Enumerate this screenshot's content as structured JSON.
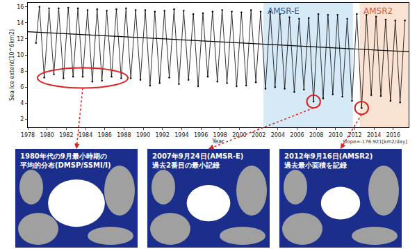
{
  "chart_data": {
    "type": "line",
    "xlabel": "Year",
    "ylabel": "Sea Ice extent(10^6km2)",
    "x": [
      1978.85,
      1979.21,
      1979.71,
      1980.21,
      1980.71,
      1981.21,
      1981.71,
      1982.21,
      1982.71,
      1983.21,
      1983.71,
      1984.21,
      1984.71,
      1985.21,
      1985.71,
      1986.21,
      1986.71,
      1987.21,
      1987.71,
      1988.21,
      1988.71,
      1989.21,
      1989.71,
      1990.21,
      1990.71,
      1991.21,
      1991.71,
      1992.21,
      1992.71,
      1993.21,
      1993.71,
      1994.21,
      1994.71,
      1995.21,
      1995.71,
      1996.21,
      1996.71,
      1997.21,
      1997.71,
      1998.21,
      1998.71,
      1999.21,
      1999.71,
      2000.21,
      2000.71,
      2001.21,
      2001.71,
      2002.21,
      2002.71,
      2003.21,
      2003.71,
      2004.21,
      2004.71,
      2005.21,
      2005.71,
      2006.21,
      2006.71,
      2007.21,
      2007.71,
      2008.21,
      2008.71,
      2009.21,
      2009.71,
      2010.21,
      2010.71,
      2011.21,
      2011.71,
      2012.21,
      2012.71,
      2013.21,
      2013.71,
      2014.21,
      2014.71,
      2015.21,
      2015.71,
      2016.21,
      2016.71,
      2017.21
    ],
    "series": [
      {
        "color": "#000000",
        "marker": "dot",
        "values": [
          11.5,
          16.0,
          7.2,
          15.8,
          7.6,
          15.8,
          7.1,
          15.9,
          7.3,
          15.8,
          7.3,
          15.6,
          6.7,
          15.7,
          6.8,
          15.5,
          7.3,
          15.7,
          7.1,
          15.8,
          7.1,
          15.6,
          6.9,
          15.6,
          6.2,
          15.4,
          6.5,
          15.5,
          7.2,
          15.7,
          6.4,
          15.5,
          6.9,
          15.1,
          6.1,
          15.2,
          7.3,
          15.4,
          6.7,
          15.6,
          6.5,
          15.4,
          6.1,
          15.3,
          6.2,
          15.6,
          6.6,
          15.4,
          5.8,
          15.4,
          6.0,
          15.1,
          5.8,
          14.7,
          5.4,
          14.5,
          5.7,
          14.6,
          4.2,
          15.1,
          4.6,
          15.0,
          5.1,
          15.0,
          4.8,
          14.5,
          4.3,
          15.1,
          3.4,
          15.0,
          5.0,
          14.8,
          4.9,
          14.4,
          4.3,
          14.3,
          4.1,
          14.3
        ]
      },
      {
        "color": "#000000",
        "line_style": "solid",
        "x": [
          1978,
          2017.6
        ],
        "values": [
          12.9,
          10.4
        ]
      }
    ],
    "xlim": [
      1978,
      2017.6
    ],
    "xticks": [
      1978,
      1980,
      1982,
      1984,
      1986,
      1988,
      1990,
      1992,
      1994,
      1996,
      1998,
      2000,
      2002,
      2004,
      2006,
      2008,
      2010,
      2012,
      2014,
      2016
    ],
    "ylim": [
      1,
      16.5
    ],
    "yticks": [
      2,
      4,
      6,
      8,
      10,
      12,
      14,
      16
    ],
    "grid": false,
    "annotations": [
      "Slope=-176.921[km2/day]"
    ],
    "regions": [
      {
        "label": "AMSR-E",
        "x": [
          2002.5,
          2011.8
        ],
        "color": "#d5eaf6"
      },
      {
        "label": "AMSR2",
        "x": [
          2012.5,
          2017.6
        ],
        "color": "#fbe3d3"
      }
    ]
  },
  "panels": [
    {
      "caption": [
        "1980年代の9月最小時期の",
        "平均的分布(DMSP/SSMI/I)"
      ],
      "x": [
        1979.71,
        1987.71
      ]
    },
    {
      "caption": [
        "2007年9月24日(AMSR-E)",
        "過去2番目の最小記録"
      ],
      "x": [
        2007.71
      ]
    },
    {
      "caption": [
        "2012年9月16日(AMSR2)",
        "過去最小面積を記録"
      ],
      "x": [
        2012.71
      ]
    }
  ]
}
